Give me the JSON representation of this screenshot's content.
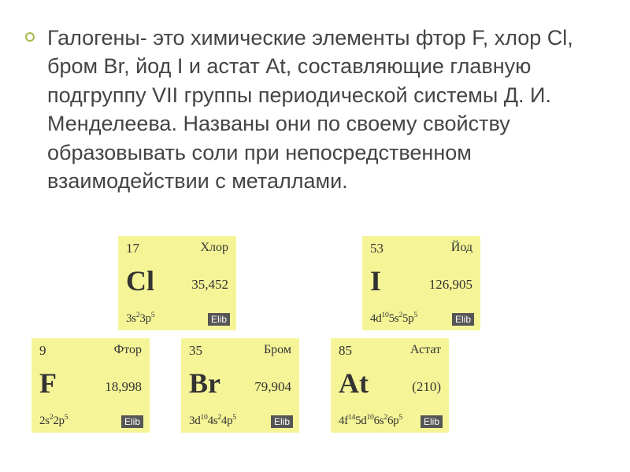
{
  "bullet_color": "#a8b84a",
  "text_color": "#444444",
  "main_text": "Галогены- это химические элементы фтор F, хлор Cl, бром Br, йод I и астат At, составляющие главную подгруппу VII группы периодической системы Д. И. Менделеева. Названы они по своему свойству образовывать соли при непосредственном взаимодействии с металлами.",
  "card_bg": "#f5f598",
  "card_text_color": "#333333",
  "elib_label": "Elib",
  "elements": {
    "cl": {
      "num": "17",
      "name": "Хлор",
      "sym": "Cl",
      "mass": "35,452",
      "econf": "3s<sup>2</sup>3p<sup>5</sup>"
    },
    "i": {
      "num": "53",
      "name": "Йод",
      "sym": "I",
      "mass": "126,905",
      "econf": "4d<sup>10</sup>5s<sup>2</sup>5p<sup>5</sup>"
    },
    "f": {
      "num": "9",
      "name": "Фтор",
      "sym": "F",
      "mass": "18,998",
      "econf": "2s<sup>2</sup>2p<sup>5</sup>"
    },
    "br": {
      "num": "35",
      "name": "Бром",
      "sym": "Br",
      "mass": "79,904",
      "econf": "3d<sup>10</sup>4s<sup>2</sup>4p<sup>5</sup>"
    },
    "at": {
      "num": "85",
      "name": "Астат",
      "sym": "At",
      "mass": "(210)",
      "econf": "4f<sup>14</sup>5d<sup>10</sup>6s<sup>2</sup>6p<sup>5</sup>"
    }
  }
}
